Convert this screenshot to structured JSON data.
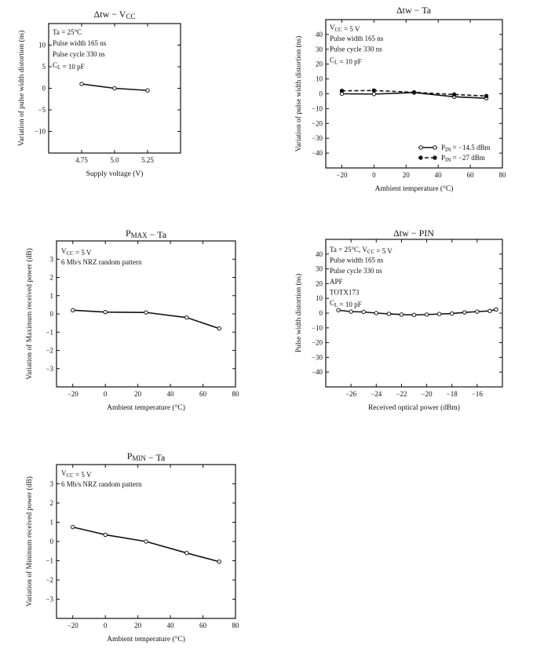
{
  "chart_data": [
    {
      "id": "c1",
      "type": "line",
      "title_main": "Δtw",
      "title_sep": "−",
      "title_var": "V",
      "title_var_sub": "CC",
      "xlabel": "Supply voltage   (V)",
      "ylabel": "Variation of pulse width distortion   (ns)",
      "xlim": [
        4.5,
        5.5
      ],
      "ylim": [
        -15,
        15
      ],
      "xticks": [
        4.75,
        5.0,
        5.25
      ],
      "xticklabels": [
        "4.75",
        "5.0",
        "5.25"
      ],
      "yticks": [
        -10,
        -5,
        0,
        5,
        10
      ],
      "yticklabels": [
        "−10",
        "−5",
        "0",
        "5",
        "10"
      ],
      "notes": [
        "Ta = 25°C",
        "Pulse width 165 ns",
        "Pulse cycle 330 ns",
        "C_L = 10 pF"
      ],
      "series": [
        {
          "x": [
            4.75,
            5.0,
            5.25
          ],
          "y": [
            1.0,
            0.0,
            -0.5
          ],
          "marker": "open",
          "dashed": false
        }
      ]
    },
    {
      "id": "c2",
      "type": "line",
      "title_main": "Δtw",
      "title_sep": "−",
      "title_var": "Ta",
      "title_var_sub": "",
      "xlabel": "Ambient temperature   (°C)",
      "ylabel": "Variation of pulse width distortion   (ns)",
      "xlim": [
        -30,
        80
      ],
      "ylim": [
        -50,
        50
      ],
      "xticks": [
        -20,
        0,
        20,
        40,
        60,
        80
      ],
      "xticklabels": [
        "−20",
        "0",
        "20",
        "40",
        "60",
        "80"
      ],
      "yticks": [
        -40,
        -30,
        -20,
        -10,
        0,
        10,
        20,
        30,
        40
      ],
      "yticklabels": [
        "−40",
        "−30",
        "−20",
        "−10",
        "0",
        "10",
        "20",
        "30",
        "40"
      ],
      "notes": [
        "V_CC = 5 V",
        "Pulse width 165 ns",
        "Pulse cycle 330 ns",
        "C_L = 10 pF"
      ],
      "legend": [
        {
          "prefix": "P",
          "sub": "IN",
          "text": " = −14.5 dBm"
        },
        {
          "prefix": "P",
          "sub": "IN",
          "text": " = −27 dBm"
        }
      ],
      "series": [
        {
          "x": [
            -20,
            0,
            25,
            50,
            70
          ],
          "y": [
            0.0,
            -0.2,
            0.8,
            -2.0,
            -3.0
          ],
          "marker": "open",
          "dashed": false
        },
        {
          "x": [
            -20,
            0,
            25,
            50,
            70
          ],
          "y": [
            2.0,
            2.2,
            1.0,
            -0.5,
            -1.5
          ],
          "marker": "filled",
          "dashed": true
        }
      ]
    },
    {
      "id": "c3",
      "type": "line",
      "title_main": "P",
      "title_main_sub": "MAX",
      "title_sep": "−",
      "title_var": "Ta",
      "title_var_sub": "",
      "xlabel": "Ambient temperature   (°C)",
      "ylabel": "Variation of Maximum received power   (dB)",
      "xlim": [
        -30,
        80
      ],
      "ylim": [
        -4,
        4
      ],
      "xticks": [
        -20,
        0,
        20,
        40,
        60,
        80
      ],
      "xticklabels": [
        "−20",
        "0",
        "20",
        "40",
        "60",
        "80"
      ],
      "yticks": [
        -3,
        -2,
        -1,
        0,
        1,
        2,
        3
      ],
      "yticklabels": [
        "−3",
        "−2",
        "−1",
        "0",
        "1",
        "2",
        "3"
      ],
      "notes": [
        "V_CC = 5 V",
        "6 Mb/s NRZ random pattern"
      ],
      "series": [
        {
          "x": [
            -20,
            0,
            25,
            50,
            70
          ],
          "y": [
            0.2,
            0.1,
            0.08,
            -0.2,
            -0.8
          ],
          "marker": "open",
          "dashed": false
        }
      ]
    },
    {
      "id": "c4",
      "type": "line",
      "title_main": "Δtw",
      "title_sep": "−",
      "title_var": "PIN",
      "title_var_sub": "",
      "xlabel": "Received optical power   (dBm)",
      "ylabel": "Pulse width distortion   (ns)",
      "xlim": [
        -28,
        -14
      ],
      "ylim": [
        -50,
        50
      ],
      "xticks": [
        -26,
        -24,
        -22,
        -20,
        -18,
        -16
      ],
      "xticklabels": [
        "−26",
        "−24",
        "−22",
        "−20",
        "−18",
        "−16"
      ],
      "yticks": [
        -40,
        -30,
        -20,
        -10,
        0,
        10,
        20,
        30,
        40
      ],
      "yticklabels": [
        "−40",
        "−30",
        "−20",
        "−10",
        "0",
        "10",
        "20",
        "30",
        "40"
      ],
      "notes": [
        "Ta = 25°C, V_CC = 5 V",
        "Pulse width 165 ns",
        "Pulse cycle 330 ns",
        "APF",
        "TOTX173",
        "C_L = 10 pF"
      ],
      "series": [
        {
          "x": [
            -27,
            -26,
            -25,
            -24,
            -23,
            -22,
            -21,
            -20,
            -19,
            -18,
            -17,
            -16,
            -15,
            -14.5
          ],
          "y": [
            2.0,
            1.0,
            0.8,
            0.0,
            -0.5,
            -1.0,
            -1.2,
            -1.0,
            -0.6,
            -0.3,
            0.5,
            1.0,
            1.5,
            2.5
          ],
          "marker": "open",
          "dashed": false
        }
      ]
    },
    {
      "id": "c5",
      "type": "line",
      "title_main": "P",
      "title_main_sub": "MIN",
      "title_sep": "−",
      "title_var": "Ta",
      "title_var_sub": "",
      "xlabel": "Ambient temperature   (°C)",
      "ylabel": "Variation of Minimum received power   (dB)",
      "xlim": [
        -30,
        80
      ],
      "ylim": [
        -4,
        4
      ],
      "xticks": [
        -20,
        0,
        20,
        40,
        60,
        80
      ],
      "xticklabels": [
        "−20",
        "0",
        "20",
        "40",
        "60",
        "80"
      ],
      "yticks": [
        -3,
        -2,
        -1,
        0,
        1,
        2,
        3
      ],
      "yticklabels": [
        "−3",
        "−2",
        "−1",
        "0",
        "1",
        "2",
        "3"
      ],
      "notes": [
        "V_CC = 5 V",
        "6 Mb/s NRZ random pattern"
      ],
      "series": [
        {
          "x": [
            -20,
            0,
            25,
            50,
            70
          ],
          "y": [
            0.75,
            0.35,
            0.0,
            -0.6,
            -1.05
          ],
          "marker": "open",
          "dashed": false
        }
      ]
    }
  ]
}
